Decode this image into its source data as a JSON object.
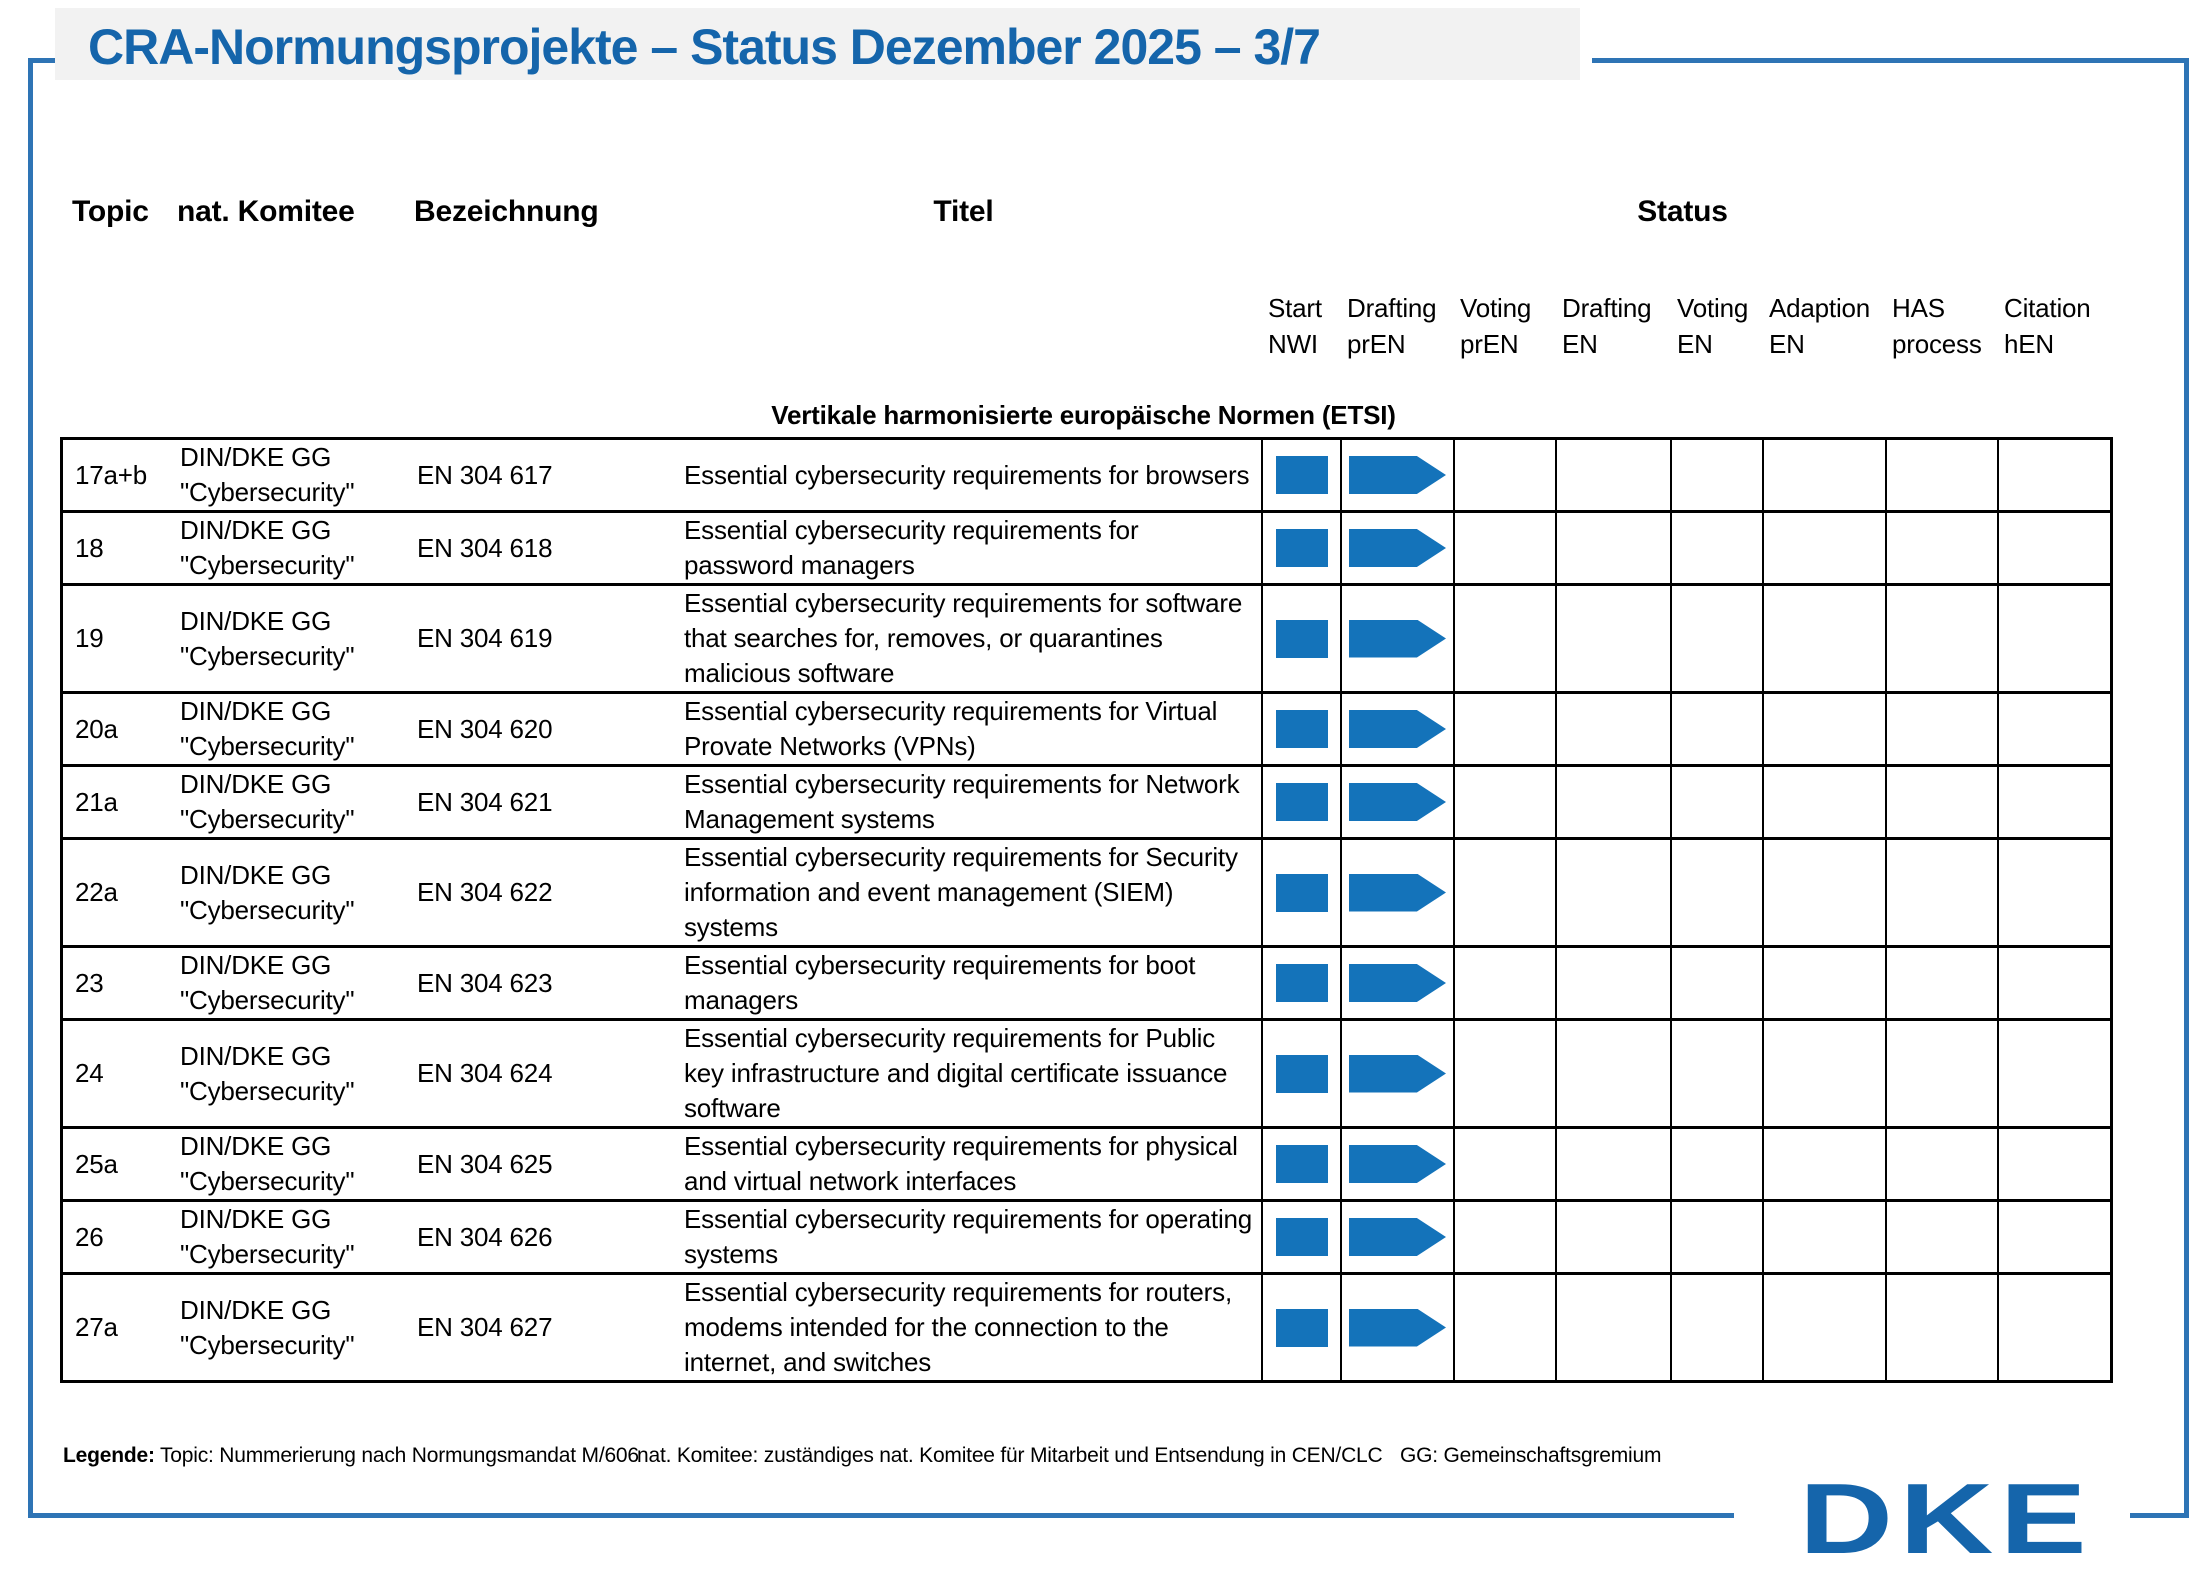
{
  "title": "CRA-Normungsprojekte – Status Dezember 2025 – 3/7",
  "header": {
    "topic": "Topic",
    "komitee": "nat. Komitee",
    "bezeichnung": "Bezeichnung",
    "titel": "Titel",
    "status": "Status"
  },
  "status_columns": [
    "Start\nNWI",
    "Drafting\nprEN",
    "Voting\nprEN",
    "Drafting\nEN",
    "Voting\nEN",
    "Adaption\nEN",
    "HAS\nprocess",
    "Citation\nhEN"
  ],
  "section_header": "Vertikale harmonisierte europäische Normen (ETSI)",
  "rows": [
    {
      "topic": "17a+b",
      "komitee": "DIN/DKE GG\n\"Cybersecurity\"",
      "bezeichnung": "EN 304 617",
      "titel": "Essential cybersecurity requirements for browsers",
      "statuses": [
        "square",
        "arrow",
        "",
        "",
        "",
        "",
        "",
        ""
      ]
    },
    {
      "topic": "18",
      "komitee": "DIN/DKE GG\n\"Cybersecurity\"",
      "bezeichnung": "EN 304 618",
      "titel": "Essential cybersecurity requirements for password managers",
      "statuses": [
        "square",
        "arrow",
        "",
        "",
        "",
        "",
        "",
        ""
      ]
    },
    {
      "topic": "19",
      "komitee": "DIN/DKE GG\n\"Cybersecurity\"",
      "bezeichnung": "EN 304 619",
      "titel": "Essential cybersecurity requirements for software that searches for, removes, or quarantines malicious software",
      "statuses": [
        "square",
        "arrow",
        "",
        "",
        "",
        "",
        "",
        ""
      ]
    },
    {
      "topic": "20a",
      "komitee": "DIN/DKE GG\n\"Cybersecurity\"",
      "bezeichnung": "EN 304 620",
      "titel": "Essential cybersecurity requirements for Virtual Provate Networks (VPNs)",
      "statuses": [
        "square",
        "arrow",
        "",
        "",
        "",
        "",
        "",
        ""
      ]
    },
    {
      "topic": "21a",
      "komitee": "DIN/DKE GG\n\"Cybersecurity\"",
      "bezeichnung": "EN 304 621",
      "titel": "Essential cybersecurity requirements for Network Management systems",
      "statuses": [
        "square",
        "arrow",
        "",
        "",
        "",
        "",
        "",
        ""
      ]
    },
    {
      "topic": "22a",
      "komitee": "DIN/DKE GG\n\"Cybersecurity\"",
      "bezeichnung": "EN 304 622",
      "titel": "Essential cybersecurity requirements for Security information and event management (SIEM) systems",
      "statuses": [
        "square",
        "arrow",
        "",
        "",
        "",
        "",
        "",
        ""
      ]
    },
    {
      "topic": "23",
      "komitee": "DIN/DKE GG\n\"Cybersecurity\"",
      "bezeichnung": "EN 304 623",
      "titel": "Essential cybersecurity requirements for boot managers",
      "statuses": [
        "square",
        "arrow",
        "",
        "",
        "",
        "",
        "",
        ""
      ]
    },
    {
      "topic": "24",
      "komitee": "DIN/DKE GG\n\"Cybersecurity\"",
      "bezeichnung": "EN 304 624",
      "titel": "Essential cybersecurity requirements for Public key infrastructure and digital certificate issuance software",
      "statuses": [
        "square",
        "arrow",
        "",
        "",
        "",
        "",
        "",
        ""
      ]
    },
    {
      "topic": "25a",
      "komitee": "DIN/DKE GG\n\"Cybersecurity\"",
      "bezeichnung": "EN 304 625",
      "titel": "Essential cybersecurity requirements for physical and virtual network interfaces",
      "statuses": [
        "square",
        "arrow",
        "",
        "",
        "",
        "",
        "",
        ""
      ]
    },
    {
      "topic": "26",
      "komitee": "DIN/DKE GG\n\"Cybersecurity\"",
      "bezeichnung": "EN 304 626",
      "titel": "Essential cybersecurity requirements for operating systems",
      "statuses": [
        "square",
        "arrow",
        "",
        "",
        "",
        "",
        "",
        ""
      ]
    },
    {
      "topic": "27a",
      "komitee": "DIN/DKE GG\n\"Cybersecurity\"",
      "bezeichnung": "EN 304 627",
      "titel": "Essential cybersecurity requirements for routers, modems intended for the connection to the internet, and switches",
      "statuses": [
        "square",
        "arrow",
        "",
        "",
        "",
        "",
        "",
        ""
      ]
    }
  ],
  "legend": {
    "label": "Legende:",
    "items": [
      "Topic: Nummerierung nach Normungsmandat M/606",
      "nat. Komitee: zuständiges nat. Komitee für Mitarbeit und Entsendung in CEN/CLC",
      "GG: Gemeinschaftsgremium"
    ]
  },
  "logo": {
    "text": "DKE"
  },
  "colors": {
    "accent_blue": "#1565ab",
    "status_shape_blue": "#1473ba",
    "frame_blue": "#2e74b5",
    "table_border": "#000000",
    "title_background": "#f2f2f2"
  }
}
